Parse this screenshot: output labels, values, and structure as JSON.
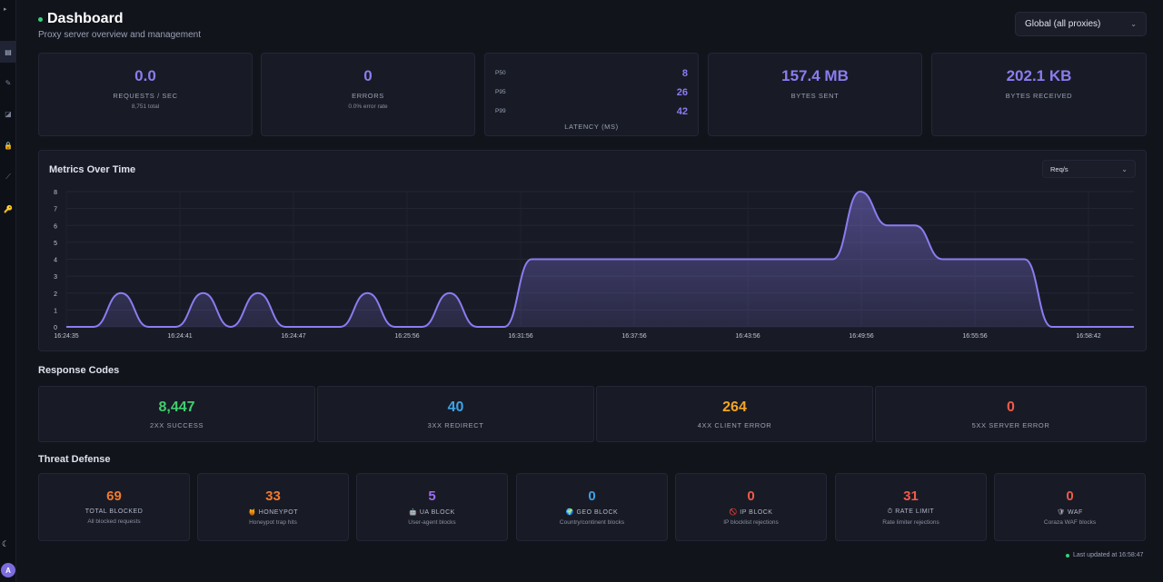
{
  "sidebar": {
    "toggle": "▸",
    "items": [
      {
        "icon": "chart-icon",
        "glyph": "▤"
      },
      {
        "icon": "tag-icon",
        "glyph": "✎"
      },
      {
        "icon": "satellite-icon",
        "glyph": "◪"
      },
      {
        "icon": "lock-icon",
        "glyph": "🔒"
      },
      {
        "icon": "link-icon",
        "glyph": "⟋"
      },
      {
        "icon": "key-icon",
        "glyph": "🔑"
      }
    ],
    "theme_glyph": "☾",
    "avatar_letter": "A"
  },
  "header": {
    "title": "Dashboard",
    "subtitle": "Proxy server overview and management",
    "scope": "Global (all proxies)"
  },
  "stats": {
    "requests": {
      "value": "0.0",
      "label": "REQUESTS / SEC",
      "sub": "8,751 total"
    },
    "errors": {
      "value": "0",
      "label": "ERRORS",
      "sub": "0.0% error rate"
    },
    "latency": {
      "label": "LATENCY (MS)",
      "rows": [
        {
          "k": "P50",
          "v": "8"
        },
        {
          "k": "P95",
          "v": "26"
        },
        {
          "k": "P99",
          "v": "42"
        }
      ]
    },
    "bytes_sent": {
      "value": "157.4 MB",
      "label": "BYTES SENT"
    },
    "bytes_received": {
      "value": "202.1 KB",
      "label": "BYTES RECEIVED"
    }
  },
  "metrics": {
    "title": "Metrics Over Time",
    "selected": "Req/s"
  },
  "chart_data": {
    "type": "area",
    "title": "Metrics Over Time",
    "ylabel": "",
    "ylim": [
      0,
      8
    ],
    "yticks": [
      0,
      1,
      2,
      3,
      4,
      5,
      6,
      7,
      8
    ],
    "x_tick_labels": [
      "16:24:35",
      "16:24:41",
      "16:24:47",
      "16:25:56",
      "16:31:56",
      "16:37:56",
      "16:43:56",
      "16:49:56",
      "16:55:56",
      "16:58:42"
    ],
    "series": [
      {
        "name": "Req/s",
        "values": [
          0,
          0,
          2,
          0,
          0,
          2,
          0,
          2,
          0,
          0,
          0,
          2,
          0,
          0,
          2,
          0,
          0,
          4,
          4,
          4,
          4,
          4,
          4,
          4,
          4,
          4,
          4,
          4,
          4,
          8,
          6,
          6,
          4,
          4,
          4,
          4,
          0,
          0,
          0,
          0
        ]
      }
    ],
    "grid": true,
    "color": "#8b7cf0"
  },
  "response_codes": {
    "title": "Response Codes",
    "items": [
      {
        "value": "8,447",
        "label": "2XX SUCCESS",
        "color": "#3fcf6e"
      },
      {
        "value": "40",
        "label": "3XX REDIRECT",
        "color": "#3fa2e8"
      },
      {
        "value": "264",
        "label": "4XX CLIENT ERROR",
        "color": "#f5a524"
      },
      {
        "value": "0",
        "label": "5XX SERVER ERROR",
        "color": "#ef5a4a"
      }
    ]
  },
  "threat": {
    "title": "Threat Defense",
    "items": [
      {
        "value": "69",
        "label": "TOTAL BLOCKED",
        "sub": "All blocked requests",
        "icon": "",
        "icon_name": "",
        "color": "#f07a2e"
      },
      {
        "value": "33",
        "label": "HONEYPOT",
        "sub": "Honeypot trap hits",
        "icon": "🍯",
        "icon_name": "honeypot-icon",
        "color": "#f07a2e"
      },
      {
        "value": "5",
        "label": "UA BLOCK",
        "sub": "User-agent blocks",
        "icon": "🤖",
        "icon_name": "robot-icon",
        "color": "#9b6cf0"
      },
      {
        "value": "0",
        "label": "GEO BLOCK",
        "sub": "Country/continent blocks",
        "icon": "🌍",
        "icon_name": "globe-icon",
        "color": "#3fa2e8"
      },
      {
        "value": "0",
        "label": "IP BLOCK",
        "sub": "IP blocklist rejections",
        "icon": "🚫",
        "icon_name": "prohibited-icon",
        "color": "#ef5a4a"
      },
      {
        "value": "31",
        "label": "RATE LIMIT",
        "sub": "Rate limiter rejections",
        "icon": "⏱",
        "icon_name": "stopwatch-icon",
        "color": "#ef5a4a"
      },
      {
        "value": "0",
        "label": "WAF",
        "sub": "Coraza WAF blocks",
        "icon": "🛡",
        "icon_name": "shield-icon",
        "color": "#ef5a4a"
      }
    ]
  },
  "footer": {
    "last_updated": "Last updated at 16:58:47"
  }
}
